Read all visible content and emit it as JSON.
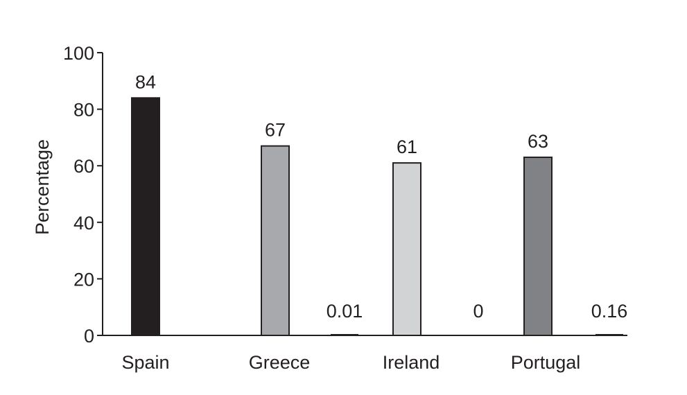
{
  "chart_data": {
    "type": "bar",
    "categories": [
      "Spain",
      "Greece",
      "Ireland",
      "Portugal"
    ],
    "ylabel": "Percentage",
    "ylim": [
      0,
      100
    ],
    "yticks": [
      "0",
      "20",
      "40",
      "60",
      "80",
      "100"
    ],
    "grid": false,
    "bars": [
      {
        "category": "Spain",
        "value": 84,
        "label": "84",
        "color": "#231f20"
      },
      {
        "category": "Greece",
        "value": 67,
        "label": "67",
        "color": "#a7a9ac"
      },
      {
        "category": "Greece",
        "value": 0.01,
        "label": "0.01",
        "color": "#ffffff"
      },
      {
        "category": "Ireland",
        "value": 61,
        "label": "61",
        "color": "#d1d3d4"
      },
      {
        "category": "Ireland",
        "value": 0,
        "label": "0",
        "color": "#ffffff"
      },
      {
        "category": "Portugal",
        "value": 63,
        "label": "63",
        "color": "#808285"
      },
      {
        "category": "Portugal",
        "value": 0.16,
        "label": "0.16",
        "color": "#ffffff"
      }
    ]
  }
}
